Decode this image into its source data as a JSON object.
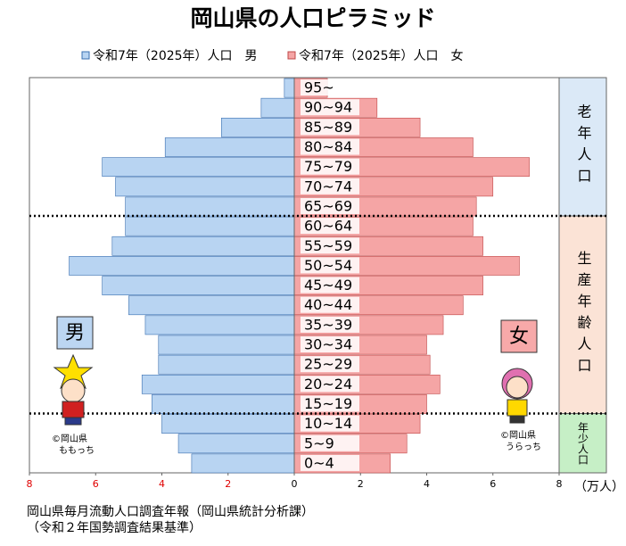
{
  "chart_data": {
    "type": "pyramid",
    "title": "岡山県の人口ピラミッド",
    "categories": [
      "95~",
      "90~94",
      "85~89",
      "80~84",
      "75~79",
      "70~74",
      "65~69",
      "60~64",
      "55~59",
      "50~54",
      "45~49",
      "40~44",
      "35~39",
      "30~34",
      "25~29",
      "20~24",
      "15~19",
      "10~14",
      "5~9",
      "0~4"
    ],
    "series": [
      {
        "name": "令和7年（2025年）人口　男",
        "color": "#b8d4f2",
        "stroke": "#3a6fb0",
        "side": "left",
        "values": [
          0.3,
          1.0,
          2.2,
          3.9,
          5.8,
          5.4,
          5.1,
          5.1,
          5.5,
          6.8,
          5.8,
          5.0,
          4.5,
          4.1,
          4.1,
          4.6,
          4.3,
          4.0,
          3.5,
          3.1
        ]
      },
      {
        "name": "令和7年（2025年）人口　女",
        "color": "#f5a5a5",
        "stroke": "#c04848",
        "side": "right",
        "values": [
          1.0,
          2.5,
          3.8,
          5.4,
          7.1,
          6.0,
          5.5,
          5.4,
          5.7,
          6.8,
          5.7,
          5.1,
          4.5,
          4.0,
          4.1,
          4.4,
          4.0,
          3.8,
          3.4,
          2.9
        ]
      }
    ],
    "xlim": [
      0,
      8
    ],
    "left_xticks": [
      8,
      6,
      4,
      2
    ],
    "right_xticks": [
      0,
      2,
      4,
      6,
      8
    ],
    "left_tick_color": "#e00000",
    "unit_label": "（万人）",
    "groups": [
      {
        "label": "老年人口",
        "color": "#dbe9f7"
      },
      {
        "label": "生産年齢人口",
        "color": "#fbe3d6"
      },
      {
        "label": "年少人口",
        "color": "#c6efc6"
      }
    ],
    "male_label": "男",
    "female_label": "女",
    "male_mascot": [
      "©岡山県",
      "ももっち"
    ],
    "female_mascot": [
      "©岡山県",
      "うらっち"
    ],
    "source": [
      "岡山県毎月流動人口調査年報（岡山県統計分析課）",
      "（令和２年国勢調査結果基準）"
    ]
  }
}
